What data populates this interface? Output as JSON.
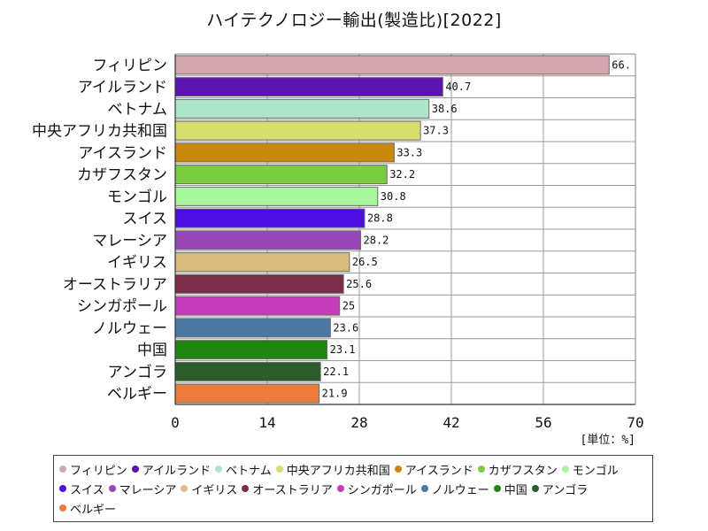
{
  "chart_data": {
    "type": "bar",
    "orientation": "horizontal",
    "title": "ハイテクノロジー輸出(製造比)[2022]",
    "unit_label": "[単位：%]",
    "categories": [
      "フィリピン",
      "アイルランド",
      "ベトナム",
      "中央アフリカ共和国",
      "アイスランド",
      "カザフスタン",
      "モンゴル",
      "スイス",
      "マレーシア",
      "イギリス",
      "オーストラリア",
      "シンガポール",
      "ノルウェー",
      "中国",
      "アンゴラ",
      "ベルギー"
    ],
    "values": [
      66.0,
      40.7,
      38.6,
      37.3,
      33.3,
      32.2,
      30.8,
      28.8,
      28.2,
      26.5,
      25.6,
      25,
      23.6,
      23.1,
      22.1,
      21.9
    ],
    "value_labels": [
      "66.",
      "40.7",
      "38.6",
      "37.3",
      "33.3",
      "32.2",
      "30.8",
      "28.8",
      "28.2",
      "26.5",
      "25.6",
      "25",
      "23.6",
      "23.1",
      "22.1",
      "21.9"
    ],
    "colors": [
      "#d4a6b0",
      "#5c14b0",
      "#ace6c8",
      "#d8de6e",
      "#c8880e",
      "#7ccc40",
      "#a6f79c",
      "#4c0ee0",
      "#9848b4",
      "#d8bc80",
      "#7c2c48",
      "#c43cb8",
      "#4c78a4",
      "#208410",
      "#2c5c2c",
      "#ec7c3c"
    ],
    "xlim": [
      0,
      70
    ],
    "xticks": [
      0,
      14,
      28,
      42,
      56,
      70
    ],
    "xtick_labels": [
      "0",
      "14",
      "28",
      "42",
      "56",
      "70"
    ],
    "grid": true,
    "legend_position": "bottom"
  }
}
